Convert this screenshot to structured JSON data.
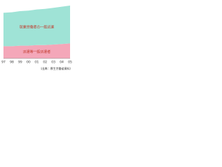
{
  "chart_data": {
    "type": "stacked-area",
    "x": [
      "97",
      "98",
      "99",
      "00",
      "01",
      "02",
      "03",
      "04",
      "05"
    ],
    "series": [
      {
        "name": "派遣等一般派遣者",
        "color": "#f4a7b9",
        "values": [
          22,
          22,
          23,
          23,
          24,
          24,
          25,
          26,
          27
        ]
      },
      {
        "name": "就業労働者の一般派遣",
        "color": "#9fe3d6",
        "values": [
          60,
          61,
          62,
          63,
          64,
          65,
          66,
          67,
          68
        ]
      }
    ],
    "ylim": [
      0,
      100
    ],
    "source": "(出典：厚生労働省資料)"
  }
}
